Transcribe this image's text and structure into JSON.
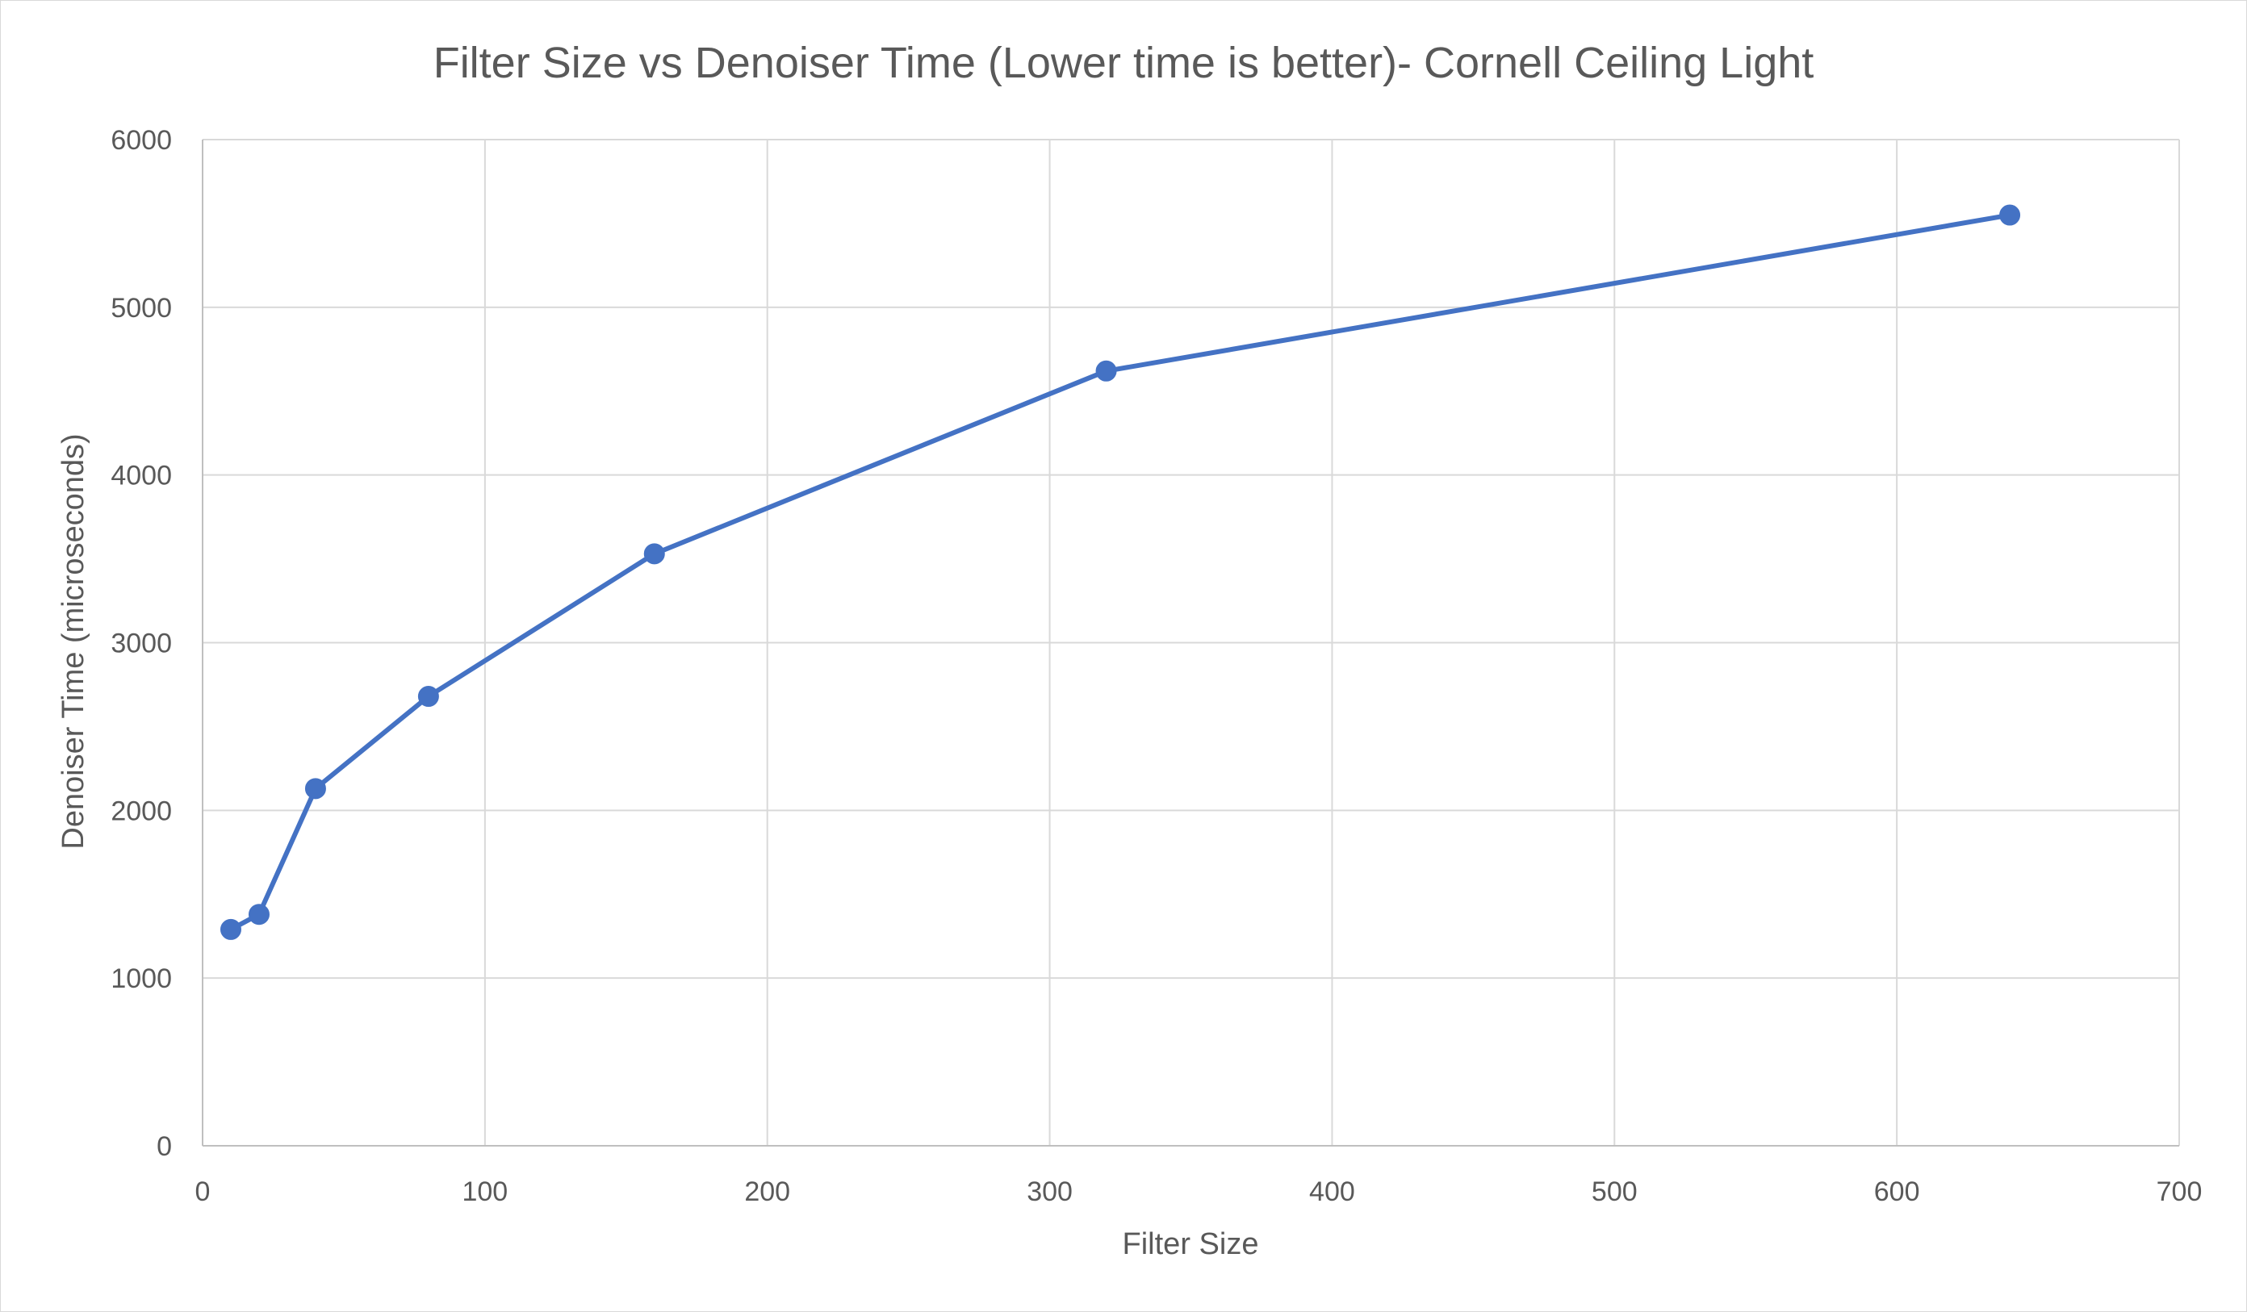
{
  "chart_data": {
    "type": "scatter",
    "title": "Filter Size vs Denoiser Time (Lower time is better)- Cornell Ceiling Light",
    "xlabel": "Filter Size",
    "ylabel": "Denoiser Time (microseconds)",
    "xlim": [
      0,
      700
    ],
    "ylim": [
      0,
      6000
    ],
    "xticks": [
      0,
      100,
      200,
      300,
      400,
      500,
      600,
      700
    ],
    "yticks": [
      0,
      1000,
      2000,
      3000,
      4000,
      5000,
      6000
    ],
    "grid": true,
    "legend": "none",
    "series": [
      {
        "color": "#4472C4",
        "style": "line-with-markers",
        "points": [
          {
            "x": 10,
            "y": 1290
          },
          {
            "x": 20,
            "y": 1380
          },
          {
            "x": 40,
            "y": 2130
          },
          {
            "x": 80,
            "y": 2680
          },
          {
            "x": 160,
            "y": 3530
          },
          {
            "x": 320,
            "y": 4620
          },
          {
            "x": 640,
            "y": 5550
          }
        ]
      }
    ]
  },
  "colors": {
    "gridline": "#d9d9d9",
    "axis_line": "#bfbfbf",
    "text": "#595959"
  }
}
